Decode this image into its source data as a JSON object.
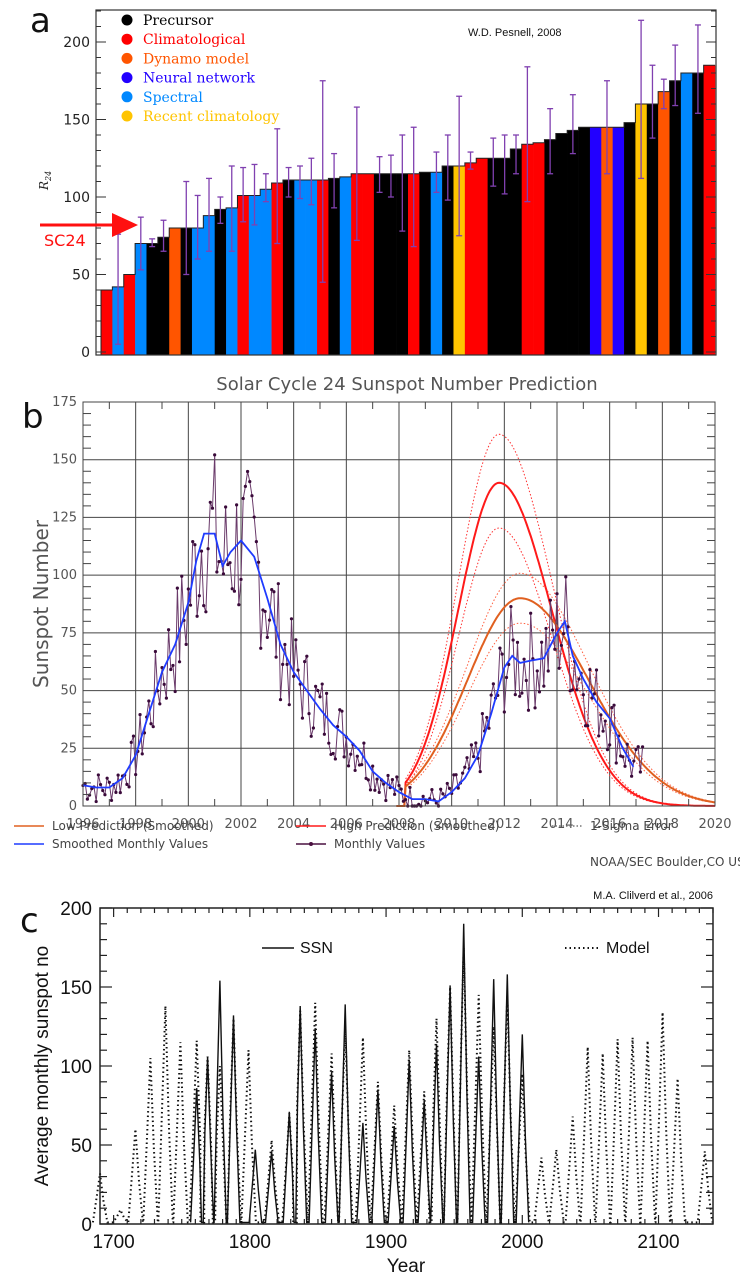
{
  "chart_data": [
    {
      "panel": "a",
      "type": "bar",
      "credit": "W.D. Pesnell, 2008",
      "ylabel": "R24",
      "ylim": [
        0,
        220
      ],
      "yticks": [
        0,
        50,
        100,
        150,
        200
      ],
      "annotation": {
        "text": "SC24",
        "value": 82,
        "color": "#ff1010"
      },
      "legend": [
        {
          "key": "precursor",
          "label": "Precursor",
          "color": "#000000"
        },
        {
          "key": "climatological",
          "label": "Climatological",
          "color": "#ff0000"
        },
        {
          "key": "dynamo",
          "label": "Dynamo model",
          "color": "#ff5500"
        },
        {
          "key": "neural",
          "label": "Neural network",
          "color": "#2200ff"
        },
        {
          "key": "spectral",
          "label": "Spectral",
          "color": "#0088ff"
        },
        {
          "key": "recent",
          "label": "Recent climatology",
          "color": "#ffc400"
        }
      ],
      "errorbar_color": "#8040b0",
      "bars": [
        {
          "cat": "climatological",
          "value": 40
        },
        {
          "cat": "spectral",
          "value": 42,
          "err": [
            5,
            76
          ]
        },
        {
          "cat": "climatological",
          "value": 50
        },
        {
          "cat": "spectral",
          "value": 70,
          "err": [
            53,
            87
          ]
        },
        {
          "cat": "precursor",
          "value": 70,
          "err": [
            68,
            73
          ]
        },
        {
          "cat": "precursor",
          "value": 74,
          "err": [
            65,
            85
          ]
        },
        {
          "cat": "dynamo",
          "value": 80
        },
        {
          "cat": "precursor",
          "value": 80,
          "err": [
            50,
            110
          ]
        },
        {
          "cat": "spectral",
          "value": 80,
          "err": [
            60,
            101
          ]
        },
        {
          "cat": "spectral",
          "value": 88,
          "err": [
            65,
            112
          ]
        },
        {
          "cat": "precursor",
          "value": 92,
          "err": [
            83,
            100
          ]
        },
        {
          "cat": "spectral",
          "value": 93,
          "err": [
            65,
            120
          ]
        },
        {
          "cat": "climatological",
          "value": 101,
          "err": [
            84,
            119
          ]
        },
        {
          "cat": "spectral",
          "value": 101,
          "err": [
            82,
            121
          ]
        },
        {
          "cat": "spectral",
          "value": 105,
          "err": [
            97,
            115
          ]
        },
        {
          "cat": "climatological",
          "value": 109,
          "err": [
            70,
            144
          ]
        },
        {
          "cat": "precursor",
          "value": 111,
          "err": [
            100,
            119
          ]
        },
        {
          "cat": "spectral",
          "value": 111,
          "err": [
            99,
            120
          ]
        },
        {
          "cat": "spectral",
          "value": 111,
          "err": [
            95,
            125
          ]
        },
        {
          "cat": "climatological",
          "value": 111,
          "err": [
            45,
            175
          ]
        },
        {
          "cat": "precursor",
          "value": 112,
          "err": [
            93,
            128
          ]
        },
        {
          "cat": "spectral",
          "value": 113
        },
        {
          "cat": "climatological",
          "value": 115,
          "err": [
            72,
            158
          ]
        },
        {
          "cat": "climatological",
          "value": 115
        },
        {
          "cat": "precursor",
          "value": 115,
          "err": [
            103,
            126
          ]
        },
        {
          "cat": "precursor",
          "value": 115,
          "err": [
            100,
            127
          ]
        },
        {
          "cat": "precursor",
          "value": 115,
          "err": [
            78,
            140
          ]
        },
        {
          "cat": "climatological",
          "value": 115,
          "err": [
            68,
            145
          ]
        },
        {
          "cat": "precursor",
          "value": 116
        },
        {
          "cat": "spectral",
          "value": 116,
          "err": [
            103,
            129
          ]
        },
        {
          "cat": "precursor",
          "value": 120,
          "err": [
            98,
            140
          ]
        },
        {
          "cat": "recent",
          "value": 120,
          "err": [
            75,
            165
          ]
        },
        {
          "cat": "climatological",
          "value": 122,
          "err": [
            118,
            129
          ]
        },
        {
          "cat": "climatological",
          "value": 125
        },
        {
          "cat": "precursor",
          "value": 125,
          "err": [
            107,
            138
          ]
        },
        {
          "cat": "precursor",
          "value": 125,
          "err": [
            102,
            140
          ]
        },
        {
          "cat": "precursor",
          "value": 131,
          "err": [
            115,
            140
          ]
        },
        {
          "cat": "climatological",
          "value": 134,
          "err": [
            97,
            184
          ]
        },
        {
          "cat": "climatological",
          "value": 135
        },
        {
          "cat": "precursor",
          "value": 137,
          "err": [
            115,
            157
          ]
        },
        {
          "cat": "precursor",
          "value": 141
        },
        {
          "cat": "precursor",
          "value": 143,
          "err": [
            128,
            166
          ]
        },
        {
          "cat": "precursor",
          "value": 145
        },
        {
          "cat": "neural",
          "value": 145
        },
        {
          "cat": "dynamo",
          "value": 145,
          "err": [
            115,
            175
          ]
        },
        {
          "cat": "neural",
          "value": 145
        },
        {
          "cat": "precursor",
          "value": 148
        },
        {
          "cat": "recent",
          "value": 160,
          "err": [
            112,
            214
          ]
        },
        {
          "cat": "precursor",
          "value": 160,
          "err": [
            138,
            185
          ]
        },
        {
          "cat": "dynamo",
          "value": 168,
          "err": [
            157,
            176
          ]
        },
        {
          "cat": "precursor",
          "value": 175,
          "err": [
            159,
            198
          ]
        },
        {
          "cat": "spectral",
          "value": 180
        },
        {
          "cat": "precursor",
          "value": 180,
          "err": [
            154,
            211
          ]
        },
        {
          "cat": "climatological",
          "value": 185
        }
      ]
    },
    {
      "panel": "b",
      "type": "line",
      "title": "Solar Cycle 24 Sunspot Number Prediction",
      "xlabel": "",
      "ylabel": "Sunspot Number",
      "xlim": [
        1996,
        2020
      ],
      "ylim": [
        0,
        175
      ],
      "xticks": [
        1996,
        1998,
        2000,
        2002,
        2004,
        2006,
        2008,
        2010,
        2012,
        2014,
        2016,
        2018,
        2020
      ],
      "yticks": [
        0,
        25,
        50,
        75,
        100,
        125,
        150,
        175
      ],
      "grid": true,
      "credit": "NOAA/SEC Boulder,CO USA",
      "legend": [
        {
          "label": "Low Prediction (Smoothed)",
          "color": "#e06020",
          "style": "solid"
        },
        {
          "label": "High Prediction (Smoothed)",
          "color": "#ff1a1a",
          "style": "solid"
        },
        {
          "label": "1-Sigma Error",
          "color": "#777777",
          "style": "dotted"
        },
        {
          "label": "Smoothed Monthly Values",
          "color": "#1f3bff",
          "style": "solid"
        },
        {
          "label": "Monthly Values",
          "color": "#4a1040",
          "style": "marker-line"
        }
      ],
      "series": [
        {
          "name": "High Prediction (Smoothed)",
          "color": "#ff1a1a",
          "peak_x": 2011.8,
          "peak_y": 140,
          "start_x": 2008.2,
          "rise_width": 1.55,
          "decay_width": 2.0
        },
        {
          "name": "Low Prediction (Smoothed)",
          "color": "#e06020",
          "peak_x": 2012.6,
          "peak_y": 90,
          "start_x": 2008.2,
          "rise_width": 2.0,
          "decay_width": 2.6
        },
        {
          "name": "Smoothed Monthly Values",
          "x": [
            1996.0,
            1996.5,
            1997.0,
            1997.5,
            1998.0,
            1998.5,
            1999.0,
            1999.5,
            2000.0,
            2000.3,
            2000.6,
            2001.0,
            2001.3,
            2001.6,
            2002.0,
            2002.5,
            2003.0,
            2003.5,
            2004.0,
            2004.5,
            2005.0,
            2005.5,
            2006.0,
            2006.5,
            2007.0,
            2007.5,
            2008.0,
            2008.5,
            2009.0,
            2009.5,
            2010.0,
            2010.5,
            2011.0,
            2011.5,
            2012.0,
            2012.3,
            2012.6,
            2013.0,
            2013.5,
            2014.0,
            2014.3,
            2014.6,
            2015.0,
            2015.5,
            2016.0,
            2016.5,
            2016.9
          ],
          "y": [
            9,
            8,
            8,
            12,
            22,
            40,
            58,
            70,
            88,
            106,
            118,
            118,
            104,
            110,
            115,
            108,
            90,
            70,
            58,
            50,
            42,
            35,
            30,
            24,
            15,
            10,
            6,
            3,
            3,
            2,
            6,
            12,
            22,
            40,
            60,
            65,
            62,
            63,
            64,
            75,
            80,
            65,
            55,
            45,
            38,
            25,
            17
          ]
        },
        {
          "name": "Monthly Values",
          "x": [
            1996,
            2017.3
          ],
          "y_range": [
            0,
            171
          ],
          "note": "noisy monthly observations around smoothed curve"
        }
      ]
    },
    {
      "panel": "c",
      "type": "line",
      "credit": "M.A. Clilverd et al., 2006",
      "xlabel": "Year",
      "ylabel": "Average monthly sunspot no",
      "xlim": [
        1690,
        2140
      ],
      "ylim": [
        0,
        200
      ],
      "xticks": [
        1700,
        1800,
        1900,
        2000,
        2100
      ],
      "yticks": [
        0,
        50,
        100,
        150,
        200
      ],
      "series": [
        {
          "name": "SSN",
          "style": "solid",
          "peaks_x": [
            1761,
            1769,
            1778,
            1788,
            1804,
            1816,
            1829,
            1837,
            1848,
            1860,
            1870,
            1883,
            1894,
            1906,
            1917,
            1928,
            1937,
            1947,
            1957,
            1968,
            1979,
            1989,
            2000
          ],
          "peaks_y": [
            86,
            106,
            154,
            132,
            47,
            46,
            71,
            138,
            124,
            96,
            139,
            64,
            85,
            62,
            104,
            78,
            114,
            151,
            190,
            106,
            155,
            158,
            120
          ]
        },
        {
          "name": "Model",
          "style": "dotted",
          "peaks_x": [
            1690,
            1705,
            1716,
            1727,
            1738,
            1749,
            1761,
            1769,
            1778,
            1788,
            1799,
            1816,
            1829,
            1837,
            1848,
            1860,
            1870,
            1883,
            1894,
            1906,
            1917,
            1928,
            1937,
            1947,
            1957,
            1968,
            1979,
            1989,
            2000,
            2014,
            2025,
            2037,
            2048,
            2059,
            2070,
            2081,
            2092,
            2103,
            2114,
            2134
          ],
          "peaks_y": [
            32,
            9,
            60,
            105,
            138,
            115,
            116,
            106,
            100,
            130,
            110,
            53,
            70,
            135,
            140,
            108,
            125,
            118,
            90,
            75,
            110,
            84,
            130,
            150,
            175,
            145,
            125,
            145,
            95,
            42,
            47,
            68,
            112,
            108,
            117,
            118,
            116,
            134,
            92,
            46
          ]
        }
      ]
    }
  ],
  "labels": {
    "a": "a",
    "b": "b",
    "c": "c"
  }
}
